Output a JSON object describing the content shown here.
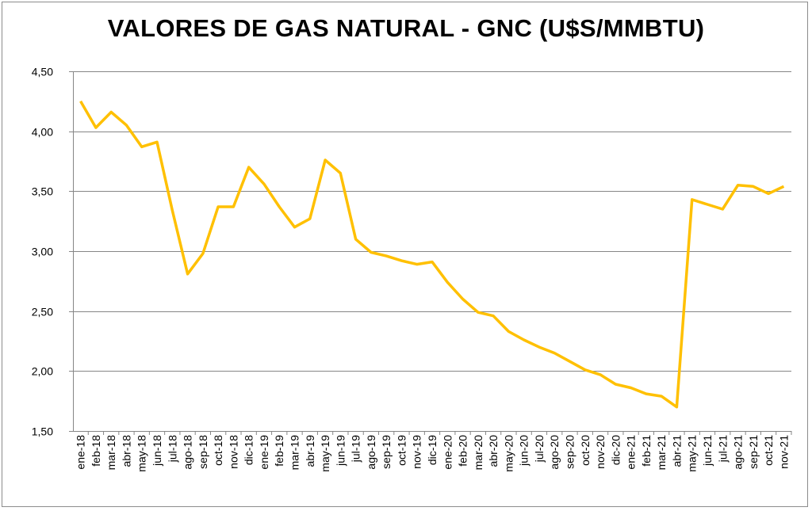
{
  "chart_data": {
    "type": "line",
    "title": "VALORES DE GAS NATURAL - GNC (U$S/MMBTU)",
    "xlabel": "",
    "ylabel": "",
    "ylim": [
      1.5,
      4.5
    ],
    "yticks": [
      "1,50",
      "2,00",
      "2,50",
      "3,00",
      "3,50",
      "4,00",
      "4,50"
    ],
    "grid": true,
    "legend": "none",
    "categories": [
      "ene-18",
      "feb-18",
      "mar-18",
      "abr-18",
      "may-18",
      "jun-18",
      "jul-18",
      "ago-18",
      "sep-18",
      "oct-18",
      "nov-18",
      "dic-18",
      "ene-19",
      "feb-19",
      "mar-19",
      "abr-19",
      "may-19",
      "jun-19",
      "jul-19",
      "ago-19",
      "sep-19",
      "oct-19",
      "nov-19",
      "dic-19",
      "ene-20",
      "feb-20",
      "mar-20",
      "abr-20",
      "may-20",
      "jun-20",
      "jul-20",
      "ago-20",
      "sep-20",
      "oct-20",
      "nov-20",
      "dic-20",
      "ene-21",
      "feb-21",
      "mar-21",
      "abr-21",
      "may-21",
      "jun-21",
      "jul-21",
      "ago-21",
      "sep-21",
      "oct-21",
      "nov-21"
    ],
    "series": [
      {
        "name": "GNC",
        "color": "#FFC000",
        "values": [
          4.25,
          4.03,
          4.16,
          4.05,
          3.87,
          3.91,
          3.34,
          2.81,
          2.98,
          3.37,
          3.37,
          3.7,
          3.56,
          3.37,
          3.2,
          3.27,
          3.76,
          3.65,
          3.1,
          2.99,
          2.96,
          2.92,
          2.89,
          2.91,
          2.74,
          2.6,
          2.49,
          2.46,
          2.33,
          2.26,
          2.2,
          2.15,
          2.08,
          2.01,
          1.97,
          1.89,
          1.86,
          1.81,
          1.79,
          1.7,
          3.43,
          3.39,
          3.35,
          3.55,
          3.54,
          3.48,
          3.54
        ]
      }
    ]
  }
}
